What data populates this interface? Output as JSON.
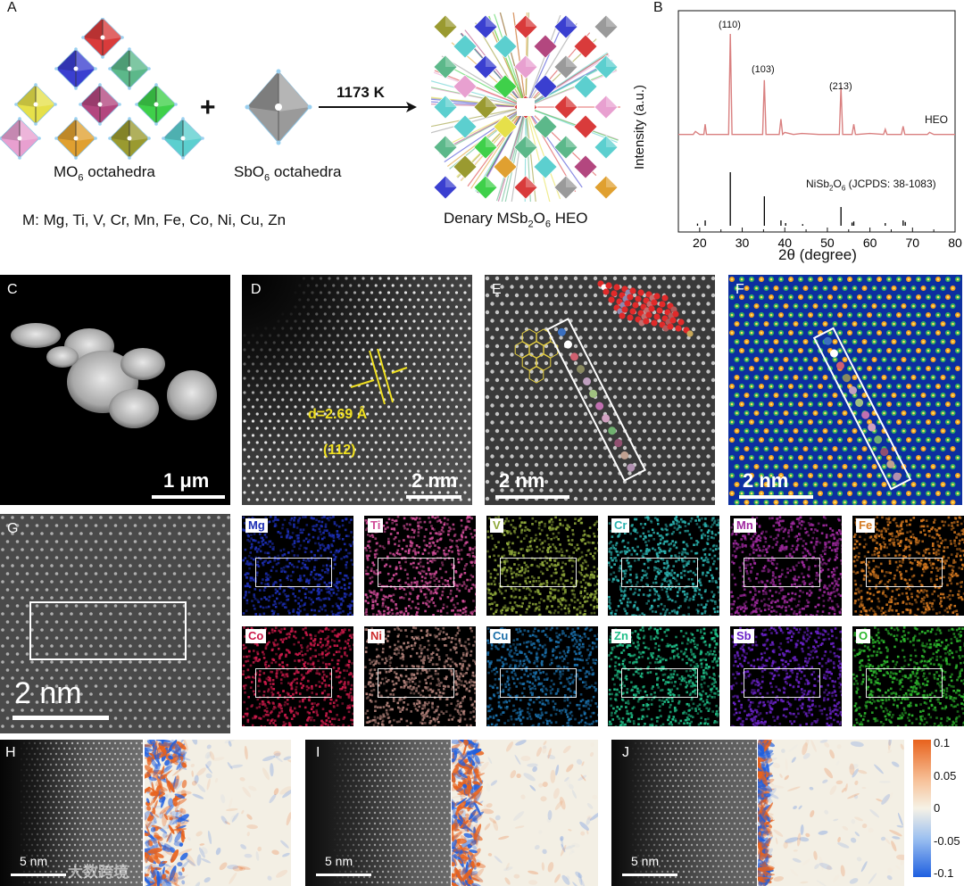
{
  "panels": {
    "A": {
      "letter": "A",
      "mo6_label_main": "MO",
      "mo6_label_sub": "6",
      "mo6_label_tail": " octahedra",
      "sbo6_label_main": "SbO",
      "sbo6_label_sub": "6",
      "sbo6_label_tail": " octahedra",
      "plus": "+",
      "temperature": "1173 K",
      "metals_line": "M: Mg, Ti, V, Cr, Mn, Fe, Co, Ni, Cu, Zn",
      "product_label_pre": "Denary MSb",
      "product_label_sub1": "2",
      "product_label_mid": "O",
      "product_label_sub2": "6",
      "product_label_tail": " HEO",
      "octahedra_colors": [
        "#d93b3b",
        "#3a3fd0",
        "#5cb88a",
        "#e6e04a",
        "#b3477f",
        "#3fd04a",
        "#e8a0d0",
        "#e0a030",
        "#9a9a30",
        "#5ccfcf"
      ],
      "sb_color": "#9a9a9a"
    },
    "B": {
      "letter": "B",
      "heo_label": "HEO",
      "reference_label_pre": "NiSb",
      "reference_label_sub1": "2",
      "reference_label_mid": "O",
      "reference_label_sub2": "6",
      "reference_label_tail": " (JCPDS: 38-1083)",
      "peak_labels": [
        "(110)",
        "(103)",
        "(213)"
      ]
    },
    "C": {
      "letter": "C",
      "scale": "1 μm"
    },
    "D": {
      "letter": "D",
      "scale": "2 nm",
      "d_spacing": "d=2.69 Å",
      "plane": "(112)"
    },
    "E": {
      "letter": "E",
      "scale": "2 nm"
    },
    "F": {
      "letter": "F",
      "scale": "2 nm"
    },
    "G": {
      "letter": "G",
      "scale": "2 nm"
    },
    "H": {
      "letter": "H",
      "scale": "5 nm"
    },
    "I": {
      "letter": "I",
      "scale": "5 nm"
    },
    "J": {
      "letter": "J",
      "scale": "5 nm"
    },
    "colorbar": {
      "ticks": [
        "0.1",
        "0.05",
        "0",
        "-0.05",
        "-0.1"
      ],
      "colors": [
        "#e8621c",
        "#f6f2e6",
        "#1e5fe0"
      ]
    },
    "watermark": "大数跨境"
  },
  "eds": [
    {
      "element": "Mg",
      "color": "#1d2fb5",
      "tag_color": "#1d2fb5"
    },
    {
      "element": "Ti",
      "color": "#d04c98",
      "tag_color": "#d04c98"
    },
    {
      "element": "V",
      "color": "#8fa83a",
      "tag_color": "#8fa83a"
    },
    {
      "element": "Cr",
      "color": "#2bb3b0",
      "tag_color": "#2bb3b0"
    },
    {
      "element": "Mn",
      "color": "#a02aa0",
      "tag_color": "#a02aa0"
    },
    {
      "element": "Fe",
      "color": "#d4781f",
      "tag_color": "#d4781f"
    },
    {
      "element": "Co",
      "color": "#cc1a4a",
      "tag_color": "#cc1a4a"
    },
    {
      "element": "Ni",
      "color": "#b08078",
      "tag_color": "#cc2b2b"
    },
    {
      "element": "Cu",
      "color": "#1a6ea8",
      "tag_color": "#1a6ea8"
    },
    {
      "element": "Zn",
      "color": "#1fbf88",
      "tag_color": "#1fbf88"
    },
    {
      "element": "Sb",
      "color": "#6a22c8",
      "tag_color": "#6a22c8"
    },
    {
      "element": "O",
      "color": "#2db82d",
      "tag_color": "#2db82d"
    }
  ],
  "chart_data": {
    "type": "line",
    "xlabel": "2θ (degree)",
    "ylabel": "Intensity (a.u.)",
    "xlim": [
      15,
      80
    ],
    "xticks": [
      20,
      30,
      40,
      50,
      60,
      70,
      80
    ],
    "series": [
      {
        "name": "HEO",
        "color": "#d98080",
        "x": [
          15,
          18.5,
          19,
          20,
          21,
          21.3,
          21.6,
          22,
          24,
          26.8,
          27.2,
          27.6,
          28,
          30,
          33,
          34.8,
          35.2,
          35.6,
          36,
          38.7,
          39.1,
          39.5,
          40,
          42,
          44,
          48,
          52.8,
          53.2,
          53.6,
          54,
          55.8,
          56.2,
          56.6,
          57,
          60,
          63.2,
          63.6,
          64,
          66,
          67.4,
          67.8,
          68.2,
          70,
          73.5,
          74,
          75,
          80
        ],
        "values": [
          0.02,
          0.02,
          0.05,
          0.02,
          0.02,
          0.12,
          0.02,
          0.02,
          0.02,
          0.02,
          1.0,
          0.02,
          0.02,
          0.02,
          0.02,
          0.02,
          0.55,
          0.02,
          0.02,
          0.02,
          0.17,
          0.02,
          0.04,
          0.02,
          0.03,
          0.02,
          0.02,
          0.48,
          0.02,
          0.02,
          0.02,
          0.12,
          0.02,
          0.02,
          0.03,
          0.02,
          0.07,
          0.02,
          0.02,
          0.02,
          0.1,
          0.02,
          0.02,
          0.02,
          0.04,
          0.02,
          0.02
        ]
      },
      {
        "name": "NiSb2O6 (JCPDS: 38-1083)",
        "color": "#000000",
        "sticks_x": [
          19.5,
          21.3,
          27.2,
          35.2,
          39.1,
          40.2,
          44.2,
          53.2,
          55.8,
          56.2,
          63.6,
          67.8,
          68.3
        ],
        "sticks_h": [
          0.04,
          0.1,
          1.0,
          0.55,
          0.1,
          0.05,
          0.03,
          0.35,
          0.06,
          0.08,
          0.05,
          0.1,
          0.07
        ]
      }
    ]
  }
}
